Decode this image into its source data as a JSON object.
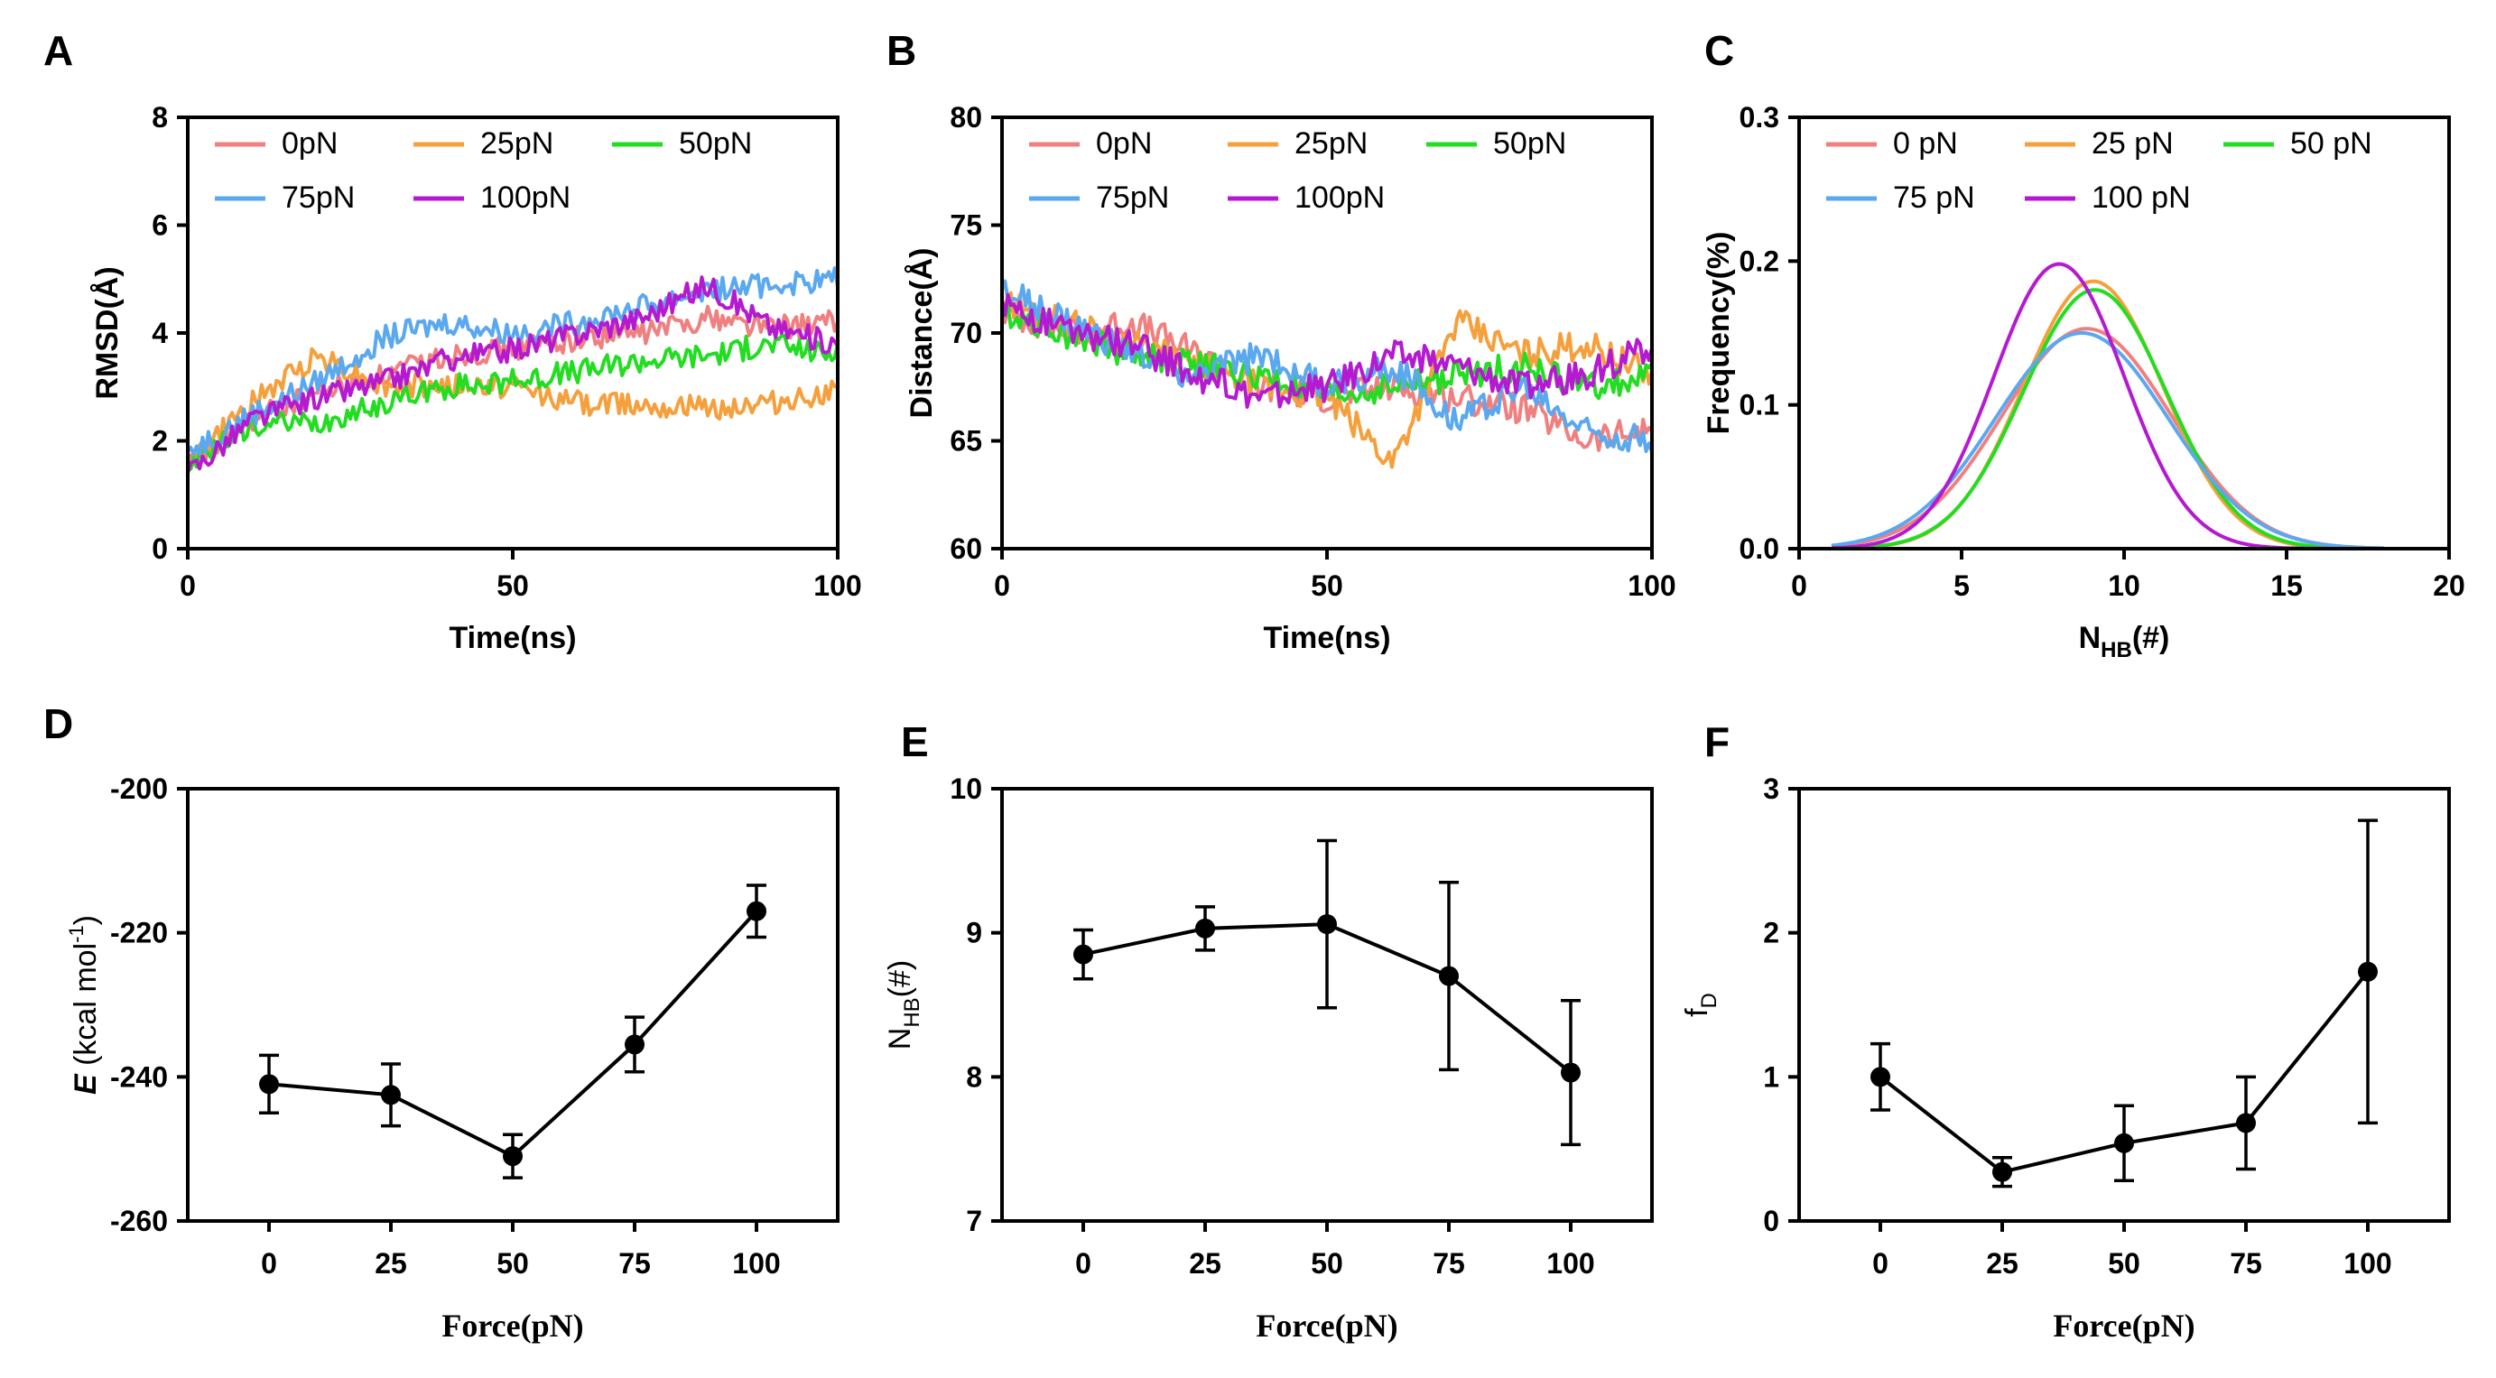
{
  "colors": {
    "0": "#f08080",
    "25": "#f5a03c",
    "50": "#22dd22",
    "75": "#5aa8ef",
    "100": "#b51ad0"
  },
  "chart_data": [
    {
      "panel": "A",
      "type": "line",
      "xlabel": "Time(ns)",
      "ylabel": "RMSD(Å)",
      "xlim": [
        0,
        100
      ],
      "ylim": [
        0,
        8
      ],
      "xticks": [
        0,
        50,
        100
      ],
      "yticks": [
        0,
        2,
        4,
        6,
        8
      ],
      "legend": [
        "0pN",
        "25pN",
        "50pN",
        "75pN",
        "100pN"
      ],
      "series": [
        {
          "name": "0pN",
          "color_key": "0",
          "points": [
            [
              0,
              1.5
            ],
            [
              10,
              2.4
            ],
            [
              20,
              2.9
            ],
            [
              30,
              3.2
            ],
            [
              40,
              3.6
            ],
            [
              50,
              3.7
            ],
            [
              60,
              3.9
            ],
            [
              70,
              4.0
            ],
            [
              80,
              4.3
            ],
            [
              90,
              4.1
            ],
            [
              100,
              4.2
            ]
          ]
        },
        {
          "name": "25pN",
          "color_key": "25",
          "points": [
            [
              0,
              1.6
            ],
            [
              10,
              2.7
            ],
            [
              20,
              3.6
            ],
            [
              30,
              3.0
            ],
            [
              40,
              3.0
            ],
            [
              50,
              3.0
            ],
            [
              60,
              2.7
            ],
            [
              70,
              2.7
            ],
            [
              80,
              2.6
            ],
            [
              90,
              2.7
            ],
            [
              100,
              2.9
            ]
          ]
        },
        {
          "name": "50pN",
          "color_key": "50",
          "points": [
            [
              0,
              1.5
            ],
            [
              10,
              2.3
            ],
            [
              20,
              2.3
            ],
            [
              30,
              2.7
            ],
            [
              40,
              3.0
            ],
            [
              50,
              3.1
            ],
            [
              60,
              3.3
            ],
            [
              70,
              3.5
            ],
            [
              80,
              3.6
            ],
            [
              90,
              3.8
            ],
            [
              100,
              3.6
            ]
          ]
        },
        {
          "name": "75pN",
          "color_key": "75",
          "points": [
            [
              0,
              1.8
            ],
            [
              10,
              2.5
            ],
            [
              20,
              3.1
            ],
            [
              30,
              3.9
            ],
            [
              40,
              4.2
            ],
            [
              50,
              4.0
            ],
            [
              60,
              4.2
            ],
            [
              70,
              4.5
            ],
            [
              80,
              4.8
            ],
            [
              90,
              4.9
            ],
            [
              100,
              5.0
            ]
          ]
        },
        {
          "name": "100pN",
          "color_key": "100",
          "points": [
            [
              0,
              1.4
            ],
            [
              10,
              2.4
            ],
            [
              20,
              2.8
            ],
            [
              30,
              3.1
            ],
            [
              40,
              3.5
            ],
            [
              50,
              3.7
            ],
            [
              60,
              4.0
            ],
            [
              70,
              4.3
            ],
            [
              80,
              4.9
            ],
            [
              90,
              4.1
            ],
            [
              100,
              3.8
            ]
          ]
        }
      ]
    },
    {
      "panel": "B",
      "type": "line",
      "xlabel": "Time(ns)",
      "ylabel": "Distance(Å)",
      "xlim": [
        0,
        100
      ],
      "ylim": [
        60,
        80
      ],
      "xticks": [
        0,
        50,
        100
      ],
      "yticks": [
        60,
        65,
        70,
        75,
        80
      ],
      "legend": [
        "0pN",
        "25pN",
        "50pN",
        "75pN",
        "100pN"
      ],
      "series": [
        {
          "name": "0pN",
          "color_key": "0",
          "points": [
            [
              0,
              71.0
            ],
            [
              10,
              70.0
            ],
            [
              20,
              70.5
            ],
            [
              30,
              69.0
            ],
            [
              40,
              67.5
            ],
            [
              50,
              67.0
            ],
            [
              60,
              67.5
            ],
            [
              70,
              67.0
            ],
            [
              80,
              66.5
            ],
            [
              90,
              65.0
            ],
            [
              100,
              65.5
            ]
          ]
        },
        {
          "name": "25pN",
          "color_key": "25",
          "points": [
            [
              0,
              71.5
            ],
            [
              10,
              70.5
            ],
            [
              20,
              69.5
            ],
            [
              30,
              68.5
            ],
            [
              40,
              67.5
            ],
            [
              50,
              67.0
            ],
            [
              60,
              64.0
            ],
            [
              70,
              70.5
            ],
            [
              80,
              69.0
            ],
            [
              90,
              69.5
            ],
            [
              100,
              68.0
            ]
          ]
        },
        {
          "name": "50pN",
          "color_key": "50",
          "points": [
            [
              0,
              71.0
            ],
            [
              10,
              70.0
            ],
            [
              20,
              69.0
            ],
            [
              30,
              68.5
            ],
            [
              40,
              68.0
            ],
            [
              50,
              67.0
            ],
            [
              60,
              67.5
            ],
            [
              70,
              68.0
            ],
            [
              80,
              68.5
            ],
            [
              90,
              67.5
            ],
            [
              100,
              68.0
            ]
          ]
        },
        {
          "name": "75pN",
          "color_key": "75",
          "points": [
            [
              0,
              72.0
            ],
            [
              10,
              70.5
            ],
            [
              20,
              69.0
            ],
            [
              30,
              68.0
            ],
            [
              40,
              69.0
            ],
            [
              50,
              67.5
            ],
            [
              60,
              68.5
            ],
            [
              70,
              66.0
            ],
            [
              80,
              67.5
            ],
            [
              90,
              65.5
            ],
            [
              100,
              65.0
            ]
          ]
        },
        {
          "name": "100pN",
          "color_key": "100",
          "points": [
            [
              0,
              71.5
            ],
            [
              10,
              70.0
            ],
            [
              20,
              69.5
            ],
            [
              30,
              68.0
            ],
            [
              40,
              67.0
            ],
            [
              50,
              67.5
            ],
            [
              60,
              69.0
            ],
            [
              70,
              68.5
            ],
            [
              80,
              67.5
            ],
            [
              90,
              68.0
            ],
            [
              100,
              69.5
            ]
          ]
        }
      ]
    },
    {
      "panel": "C",
      "type": "line",
      "xlabel": "N",
      "xlabel_sub": "HB",
      "xlabel_suffix": "(#)",
      "ylabel": "Frequency(%)",
      "xlim": [
        0,
        20
      ],
      "ylim": [
        0,
        0.3
      ],
      "xticks": [
        0,
        5,
        10,
        15,
        20
      ],
      "yticks": [
        0.0,
        0.1,
        0.2,
        0.3
      ],
      "legend": [
        "0 pN",
        "25 pN",
        "50 pN",
        "75 pN",
        "100 pN"
      ],
      "series": [
        {
          "name": "0 pN",
          "color_key": "0",
          "distribution": "gaussian",
          "mean": 8.85,
          "sd": 2.6,
          "peak": 0.153,
          "x_range": [
            1,
            18
          ]
        },
        {
          "name": "25 pN",
          "color_key": "25",
          "distribution": "gaussian",
          "mean": 9.05,
          "sd": 2.15,
          "peak": 0.186,
          "x_range": [
            1,
            18
          ]
        },
        {
          "name": "50 pN",
          "color_key": "50",
          "distribution": "gaussian",
          "mean": 9.1,
          "sd": 2.2,
          "peak": 0.18,
          "x_range": [
            1,
            18
          ]
        },
        {
          "name": "75 pN",
          "color_key": "75",
          "distribution": "gaussian",
          "mean": 8.7,
          "sd": 2.65,
          "peak": 0.15,
          "x_range": [
            1,
            18
          ]
        },
        {
          "name": "100 pN",
          "color_key": "100",
          "distribution": "gaussian",
          "mean": 8.0,
          "sd": 2.0,
          "peak": 0.198,
          "x_range": [
            1,
            18
          ]
        }
      ]
    },
    {
      "panel": "D",
      "type": "line",
      "subtype": "errorbar",
      "xlabel": "Force(pN)",
      "ylabel_italic": "E",
      "ylabel_rest": " (kcal mol",
      "ylabel_sup": "-1",
      "ylabel_close": ")",
      "ylim": [
        -260,
        -200
      ],
      "yticks": [
        -260,
        -240,
        -220,
        -200
      ],
      "categories": [
        "0",
        "25",
        "50",
        "75",
        "100"
      ],
      "values": [
        -241,
        -242.5,
        -251,
        -235.5,
        -217
      ],
      "errors": [
        4,
        4.3,
        3,
        3.8,
        3.6
      ]
    },
    {
      "panel": "E",
      "type": "line",
      "subtype": "errorbar",
      "xlabel": "Force(pN)",
      "ylabel": "N",
      "ylabel_sub": "HB",
      "ylabel_suffix": "(#)",
      "ylim": [
        7,
        10
      ],
      "yticks": [
        7,
        8,
        9,
        10
      ],
      "categories": [
        "0",
        "25",
        "50",
        "75",
        "100"
      ],
      "values": [
        8.85,
        9.03,
        9.06,
        8.7,
        8.03
      ],
      "errors": [
        0.17,
        0.15,
        0.58,
        0.65,
        0.5
      ]
    },
    {
      "panel": "F",
      "type": "line",
      "subtype": "errorbar",
      "xlabel": "Force(pN)",
      "ylabel": "f",
      "ylabel_sub": "D",
      "ylim": [
        0,
        3
      ],
      "yticks": [
        0,
        1,
        2,
        3
      ],
      "categories": [
        "0",
        "25",
        "50",
        "75",
        "100"
      ],
      "values": [
        1.0,
        0.34,
        0.54,
        0.68,
        1.73
      ],
      "errors": [
        0.23,
        0.1,
        0.26,
        0.32,
        1.05
      ]
    }
  ]
}
